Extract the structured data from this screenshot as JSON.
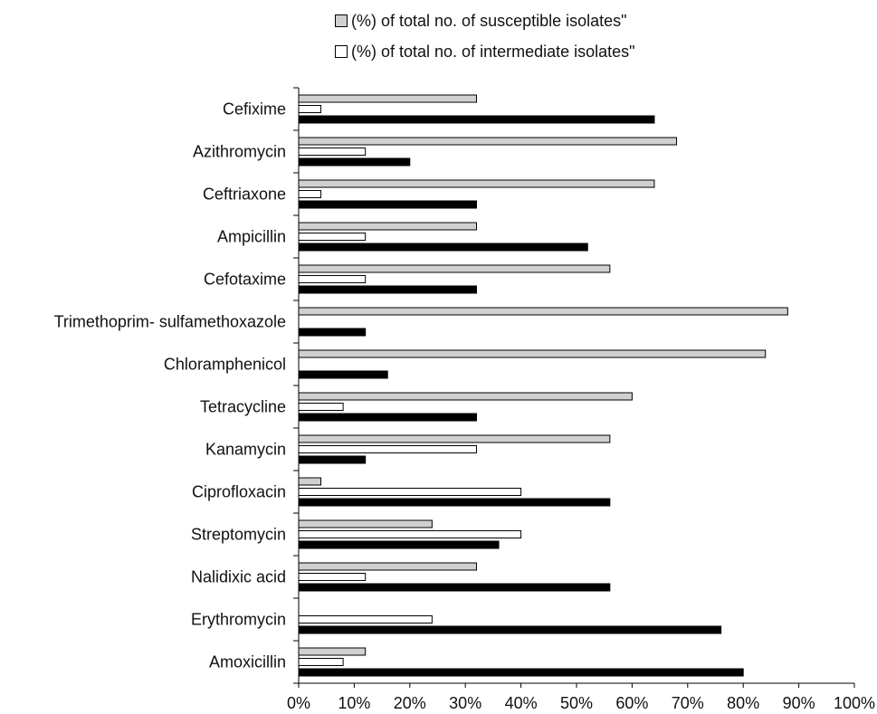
{
  "chart_data": {
    "type": "bar",
    "orientation": "horizontal",
    "categories": [
      "Cefixime",
      "Azithromycin",
      "Ceftriaxone",
      "Ampicillin",
      "Cefotaxime",
      "Trimethoprim- sulfamethoxazole",
      "Chloramphenicol",
      "Tetracycline",
      "Kanamycin",
      "Ciprofloxacin",
      "Streptomycin",
      "Nalidixic acid",
      "Erythromycin",
      "Amoxicillin"
    ],
    "series": [
      {
        "name": "(%) of total no. of susceptible isolates\"",
        "color": "#d0d0d0",
        "values": [
          32,
          68,
          64,
          32,
          56,
          88,
          84,
          60,
          56,
          4,
          24,
          32,
          0,
          12
        ]
      },
      {
        "name": "(%) of total no. of intermediate isolates\"",
        "color": "#ffffff",
        "values": [
          4,
          12,
          4,
          12,
          12,
          0,
          0,
          8,
          32,
          40,
          40,
          12,
          24,
          8
        ]
      },
      {
        "name": "",
        "color": "#000000",
        "values": [
          64,
          20,
          32,
          52,
          32,
          12,
          16,
          32,
          12,
          56,
          36,
          56,
          76,
          80
        ]
      }
    ],
    "xlim": [
      0,
      100
    ],
    "xticks": [
      "0%",
      "10%",
      "20%",
      "30%",
      "40%",
      "50%",
      "60%",
      "70%",
      "80%",
      "90%",
      "100%"
    ],
    "grid": false,
    "legend_position": "top"
  }
}
